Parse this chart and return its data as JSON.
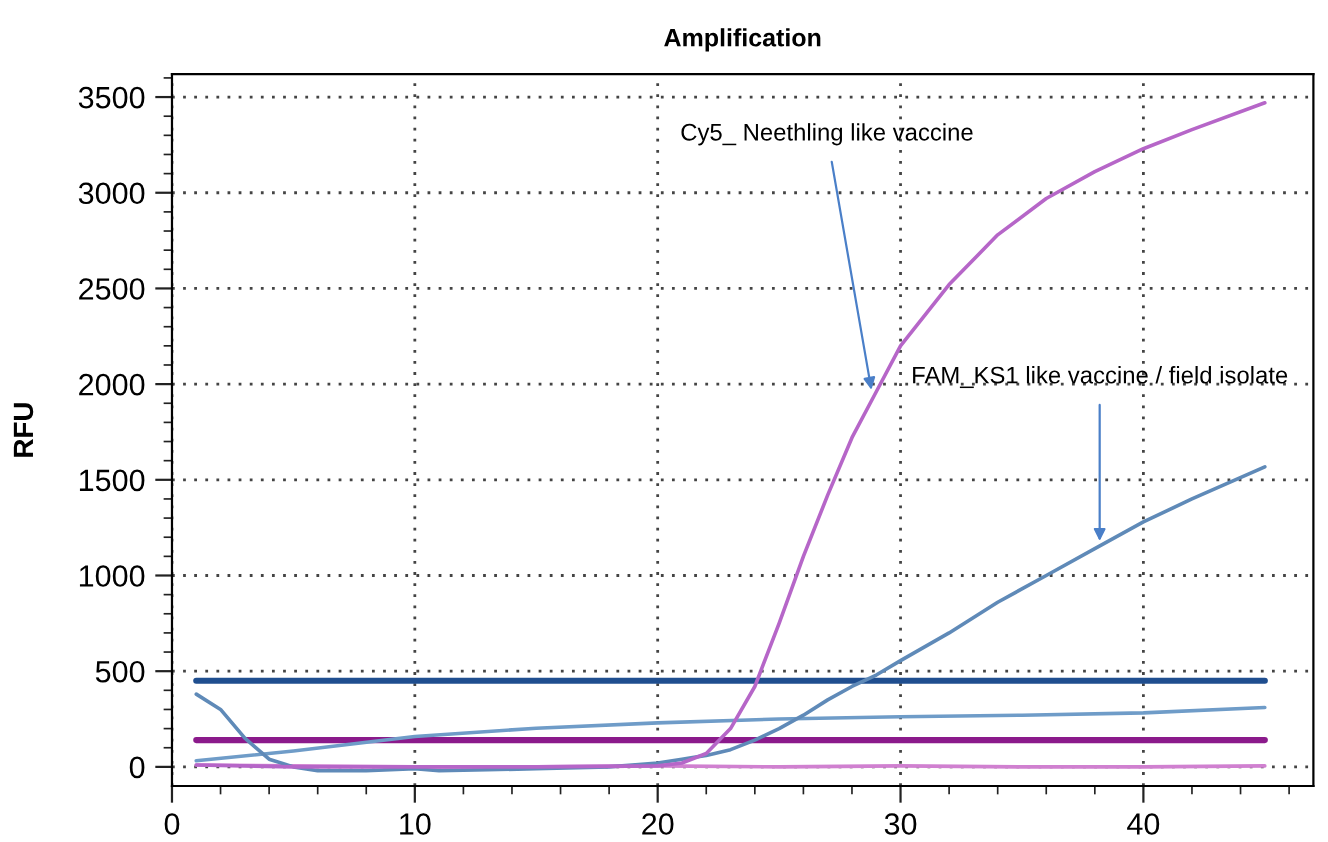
{
  "chart_data": {
    "type": "line",
    "title": "Amplification",
    "ylabel": "RFU",
    "xlim": [
      0,
      47
    ],
    "ylim": [
      -100,
      3620
    ],
    "xticks": [
      0,
      {
        "value": 2,
        "label": null
      },
      {
        "value": 4,
        "label": null
      },
      {
        "value": 6,
        "label": null
      },
      {
        "value": 8,
        "label": null
      },
      10,
      {
        "value": 12,
        "label": null
      },
      {
        "value": 14,
        "label": null
      },
      {
        "value": 16,
        "label": null
      },
      {
        "value": 18,
        "label": null
      },
      20,
      {
        "value": 22,
        "label": null
      },
      {
        "value": 24,
        "label": null
      },
      {
        "value": 26,
        "label": null
      },
      {
        "value": 28,
        "label": null
      },
      30,
      {
        "value": 32,
        "label": null
      },
      {
        "value": 34,
        "label": null
      },
      {
        "value": 36,
        "label": null
      },
      {
        "value": 38,
        "label": null
      },
      40,
      {
        "value": 42,
        "label": null
      },
      {
        "value": 44,
        "label": null
      },
      {
        "value": 46,
        "label": null
      }
    ],
    "yticks": [
      0,
      {
        "value": 100,
        "label": null
      },
      {
        "value": 200,
        "label": null
      },
      {
        "value": 300,
        "label": null
      },
      {
        "value": 400,
        "label": null
      },
      500,
      {
        "value": 600,
        "label": null
      },
      {
        "value": 700,
        "label": null
      },
      {
        "value": 800,
        "label": null
      },
      {
        "value": 900,
        "label": null
      },
      1000,
      {
        "value": 1100,
        "label": null
      },
      {
        "value": 1200,
        "label": null
      },
      {
        "value": 1300,
        "label": null
      },
      {
        "value": 1400,
        "label": null
      },
      1500,
      {
        "value": 1600,
        "label": null
      },
      {
        "value": 1700,
        "label": null
      },
      {
        "value": 1800,
        "label": null
      },
      {
        "value": 1900,
        "label": null
      },
      2000,
      {
        "value": 2100,
        "label": null
      },
      {
        "value": 2200,
        "label": null
      },
      {
        "value": 2300,
        "label": null
      },
      {
        "value": 2400,
        "label": null
      },
      2500,
      {
        "value": 2600,
        "label": null
      },
      {
        "value": 2700,
        "label": null
      },
      {
        "value": 2800,
        "label": null
      },
      {
        "value": 2900,
        "label": null
      },
      3000,
      {
        "value": 3100,
        "label": null
      },
      {
        "value": 3200,
        "label": null
      },
      {
        "value": 3300,
        "label": null
      },
      {
        "value": 3400,
        "label": null
      },
      3500,
      {
        "value": 3600,
        "label": null
      }
    ],
    "grid": true,
    "marker": "none",
    "line_style": "solid",
    "series": [
      {
        "color": "#1f4e8f",
        "x": [
          1,
          45
        ],
        "values": [
          450,
          450
        ]
      },
      {
        "color": "#8b1a8b",
        "x": [
          1,
          45
        ],
        "values": [
          140,
          140
        ]
      },
      {
        "color": "#d080d0",
        "x": [
          1,
          5,
          10,
          15,
          20,
          25,
          30,
          35,
          40,
          45
        ],
        "values": [
          10,
          5,
          0,
          0,
          5,
          0,
          5,
          0,
          0,
          5
        ]
      },
      {
        "color": "#6f9cc8",
        "x": [
          1,
          5,
          10,
          15,
          20,
          25,
          30,
          35,
          40,
          45
        ],
        "values": [
          32,
          83,
          159,
          202,
          230,
          250,
          262,
          270,
          282,
          310
        ]
      },
      {
        "color": "#5f8ab8",
        "x": [
          1,
          2,
          3,
          4,
          5,
          6,
          8,
          10,
          11,
          13,
          15,
          18,
          20,
          21,
          22,
          23,
          24,
          25,
          26,
          27,
          28,
          29,
          30,
          32,
          34,
          36,
          38,
          40,
          42,
          45
        ],
        "values": [
          380,
          300,
          150,
          40,
          0,
          -20,
          -20,
          -10,
          -20,
          -15,
          -10,
          0,
          20,
          40,
          60,
          90,
          140,
          200,
          270,
          350,
          420,
          480,
          555,
          700,
          860,
          1000,
          1140,
          1280,
          1400,
          1568
        ]
      },
      {
        "color": "#b666c8",
        "x": [
          1,
          5,
          10,
          15,
          20,
          21,
          22,
          23,
          24,
          25,
          26,
          27,
          28,
          29,
          30,
          32,
          34,
          36,
          38,
          40,
          42,
          45
        ],
        "values": [
          10,
          0,
          0,
          0,
          5,
          20,
          70,
          200,
          420,
          750,
          1100,
          1420,
          1720,
          1960,
          2200,
          2520,
          2780,
          2970,
          3110,
          3230,
          3330,
          3470
        ]
      }
    ],
    "annotations": [
      {
        "text": "Cy5_ Neethling like vaccine",
        "x": 28.8,
        "y": 1970
      },
      {
        "text": "FAM_KS1 like vaccine / field isolate",
        "x": 38.2,
        "y": 1180
      }
    ]
  }
}
